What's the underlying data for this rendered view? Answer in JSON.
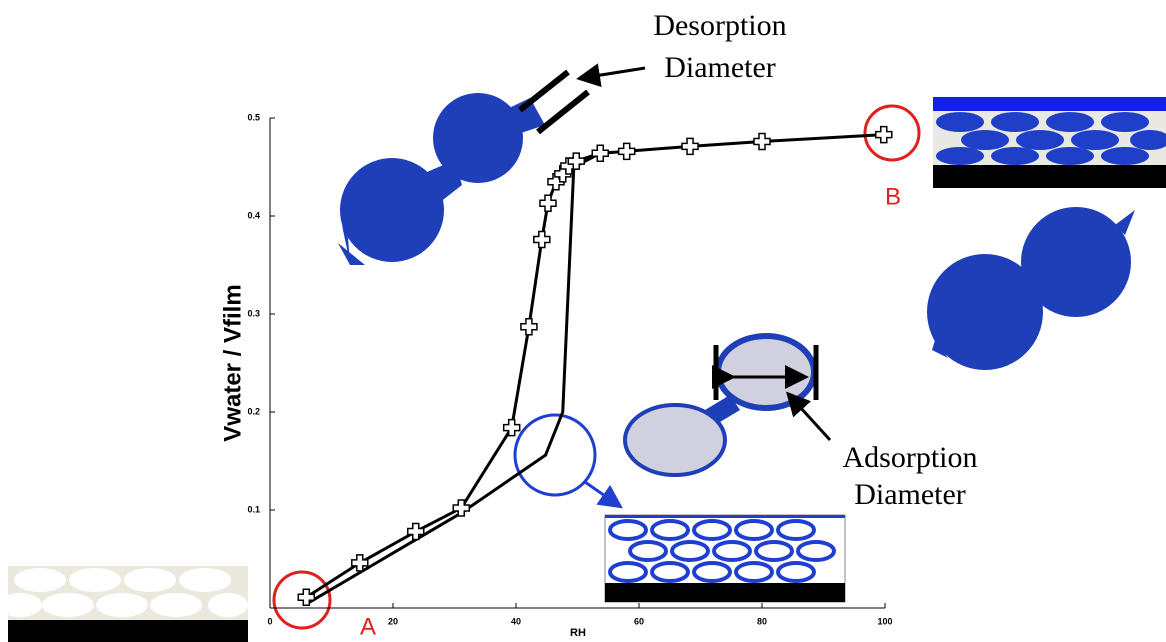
{
  "chart_data": {
    "type": "line",
    "x_label": "RH",
    "y_label": "Vwater / Vfilm",
    "xlim": [
      0,
      100
    ],
    "ylim": [
      0,
      0.5
    ],
    "xticks": [
      0,
      20,
      40,
      60,
      80,
      100
    ],
    "yticks": [
      0.1,
      0.2,
      0.3,
      0.4,
      0.5
    ],
    "grid": false,
    "series": [
      {
        "color": "#000000",
        "marker": "plus",
        "x": [
          5.9,
          14.6,
          23.7,
          31.1,
          39.3,
          42.1,
          44.2,
          45.2,
          46.5,
          47.6,
          48.6,
          49.8,
          53.7,
          58.0,
          68.3,
          80.0,
          99.8
        ],
        "values": [
          0.011,
          0.046,
          0.078,
          0.102,
          0.184,
          0.287,
          0.376,
          0.413,
          0.435,
          0.443,
          0.451,
          0.456,
          0.464,
          0.466,
          0.471,
          0.476,
          0.483
        ]
      },
      {
        "color": "#000000",
        "marker": "none",
        "x": [
          5.9,
          31.1,
          44.8,
          47.6,
          49.4,
          53.7
        ],
        "values": [
          0.004,
          0.097,
          0.156,
          0.2,
          0.45,
          0.464
        ]
      }
    ],
    "annotations": [
      "Desorption",
      "Diameter",
      "Adsorption",
      "Diameter",
      "A",
      "B"
    ]
  }
}
